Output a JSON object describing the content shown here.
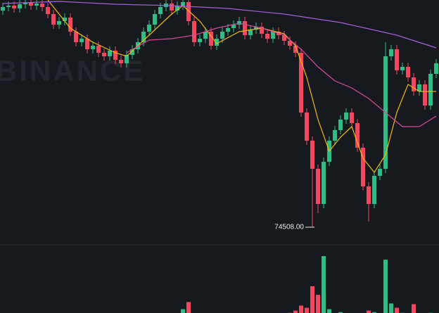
{
  "chart_data": {
    "type": "candlestick",
    "watermark": "BINANCE",
    "ylim": [
      74238,
      77738
    ],
    "vlim": [
      0,
      100
    ],
    "up_color": "#2ebd85",
    "down_color": "#f6465d",
    "open": [
      77588,
      77638,
      77658,
      77618,
      77678,
      77698,
      77658,
      77688,
      77638,
      77538,
      77388,
      77438,
      77488,
      77288,
      77138,
      77188,
      77038,
      77088,
      76988,
      76938,
      77018,
      76888,
      76838,
      76958,
      77038,
      77138,
      77288,
      77388,
      77538,
      77638,
      77688,
      77588,
      77658,
      77708,
      77438,
      77138,
      77188,
      77288,
      77088,
      77188,
      77288,
      77338,
      77388,
      77438,
      77238,
      77318,
      77358,
      77258,
      77188,
      77288,
      77238,
      77158,
      77088,
      76988,
      76138,
      75738,
      75338,
      74838,
      75438,
      75738,
      75888,
      76038,
      76138,
      75988,
      75638,
      75088,
      74838,
      75238,
      75338,
      76938,
      77038,
      76738,
      76788,
      76638,
      76438,
      76538,
      76238,
      76688
    ],
    "high": [
      77698,
      77718,
      77718,
      77738,
      77758,
      77758,
      77748,
      77748,
      77698,
      77598,
      77498,
      77548,
      77548,
      77348,
      77248,
      77248,
      77148,
      77148,
      77048,
      77078,
      77078,
      76948,
      77018,
      77098,
      77198,
      77348,
      77448,
      77598,
      77698,
      77748,
      77748,
      77718,
      77768,
      77768,
      77498,
      77248,
      77348,
      77348,
      77248,
      77348,
      77398,
      77448,
      77498,
      77498,
      77378,
      77418,
      77418,
      77318,
      77348,
      77348,
      77298,
      77218,
      77148,
      77048,
      76198,
      75798,
      75398,
      75498,
      75798,
      75948,
      76098,
      76198,
      76198,
      76048,
      75698,
      75148,
      75298,
      75398,
      77138,
      77098,
      77098,
      76848,
      76848,
      76698,
      76598,
      76598,
      76748,
      76898
    ],
    "low": [
      77528,
      77578,
      77558,
      77558,
      77618,
      77598,
      77598,
      77578,
      77478,
      77328,
      77328,
      77378,
      77228,
      77078,
      77078,
      76978,
      76978,
      76928,
      76878,
      76878,
      76828,
      76778,
      76778,
      76898,
      76978,
      77078,
      77228,
      77328,
      77478,
      77578,
      77528,
      77528,
      77598,
      77378,
      77078,
      77078,
      77128,
      77028,
      77028,
      77128,
      77228,
      77278,
      77328,
      77178,
      77178,
      77258,
      77198,
      77128,
      77128,
      77178,
      77098,
      77028,
      76928,
      76078,
      75678,
      74508,
      74708,
      74778,
      75378,
      75678,
      75828,
      75978,
      75928,
      75578,
      75028,
      74588,
      74778,
      75178,
      75278,
      76878,
      76678,
      76678,
      76578,
      76378,
      76378,
      76178,
      76178,
      76628
    ],
    "close": [
      77638,
      77658,
      77618,
      77678,
      77698,
      77658,
      77688,
      77638,
      77538,
      77388,
      77438,
      77488,
      77288,
      77138,
      77188,
      77038,
      77088,
      76988,
      76938,
      77018,
      76888,
      76838,
      76958,
      77038,
      77138,
      77288,
      77388,
      77538,
      77638,
      77688,
      77588,
      77658,
      77708,
      77438,
      77138,
      77188,
      77288,
      77088,
      77188,
      77288,
      77338,
      77388,
      77438,
      77238,
      77318,
      77358,
      77258,
      77188,
      77288,
      77238,
      77158,
      77088,
      76988,
      76138,
      75738,
      75338,
      74838,
      75438,
      75738,
      75888,
      76038,
      76138,
      75988,
      75638,
      75088,
      74838,
      75238,
      75338,
      76938,
      77038,
      76738,
      76788,
      76638,
      76438,
      76538,
      76238,
      76688,
      76838
    ],
    "volume": [
      5,
      6,
      4,
      7,
      5,
      6,
      4,
      8,
      9,
      10,
      7,
      6,
      9,
      8,
      7,
      6,
      9,
      8,
      7,
      10,
      9,
      8,
      6,
      7,
      8,
      9,
      10,
      8,
      9,
      7,
      6,
      8,
      20,
      30,
      9,
      8,
      7,
      8,
      7,
      6,
      7,
      8,
      9,
      10,
      8,
      7,
      8,
      9,
      10,
      8,
      12,
      15,
      18,
      25,
      22,
      52,
      40,
      94,
      20,
      14,
      16,
      12,
      10,
      12,
      14,
      18,
      16,
      14,
      89,
      28,
      22,
      15,
      14,
      27,
      13,
      12,
      15,
      10
    ],
    "lines": [
      {
        "color": "#f0b90b",
        "x": [
          8,
          12,
          16,
          20,
          22,
          26,
          30,
          32,
          35,
          38,
          42,
          46,
          50,
          52,
          54,
          56,
          58,
          60,
          62,
          64,
          66,
          68,
          70,
          72,
          74,
          77
        ],
        "values": [
          77738,
          77338,
          77138,
          76988,
          76938,
          77238,
          77538,
          77658,
          77438,
          77118,
          77288,
          77338,
          77258,
          77088,
          76638,
          76038,
          75588,
          75788,
          75938,
          75488,
          75288,
          75538,
          76138,
          76538,
          76438,
          76438
        ]
      },
      {
        "color": "#d9479a",
        "x": [
          22,
          26,
          30,
          34,
          38,
          42,
          46,
          50,
          53,
          56,
          59,
          62,
          65,
          68,
          71,
          74,
          77
        ],
        "values": [
          76988,
          77168,
          77188,
          77238,
          77338,
          77408,
          77338,
          77238,
          77038,
          76788,
          76588,
          76488,
          76338,
          76138,
          75938,
          75938,
          76088
        ]
      },
      {
        "color": "#a461d8",
        "x": [
          0,
          10,
          20,
          30,
          40,
          50,
          60,
          70,
          77
        ],
        "values": [
          77688,
          77718,
          77678,
          77658,
          77618,
          77538,
          77418,
          77238,
          77058
        ]
      }
    ],
    "annotation": {
      "value": 74508,
      "label": "74508.00",
      "index": 55
    }
  }
}
